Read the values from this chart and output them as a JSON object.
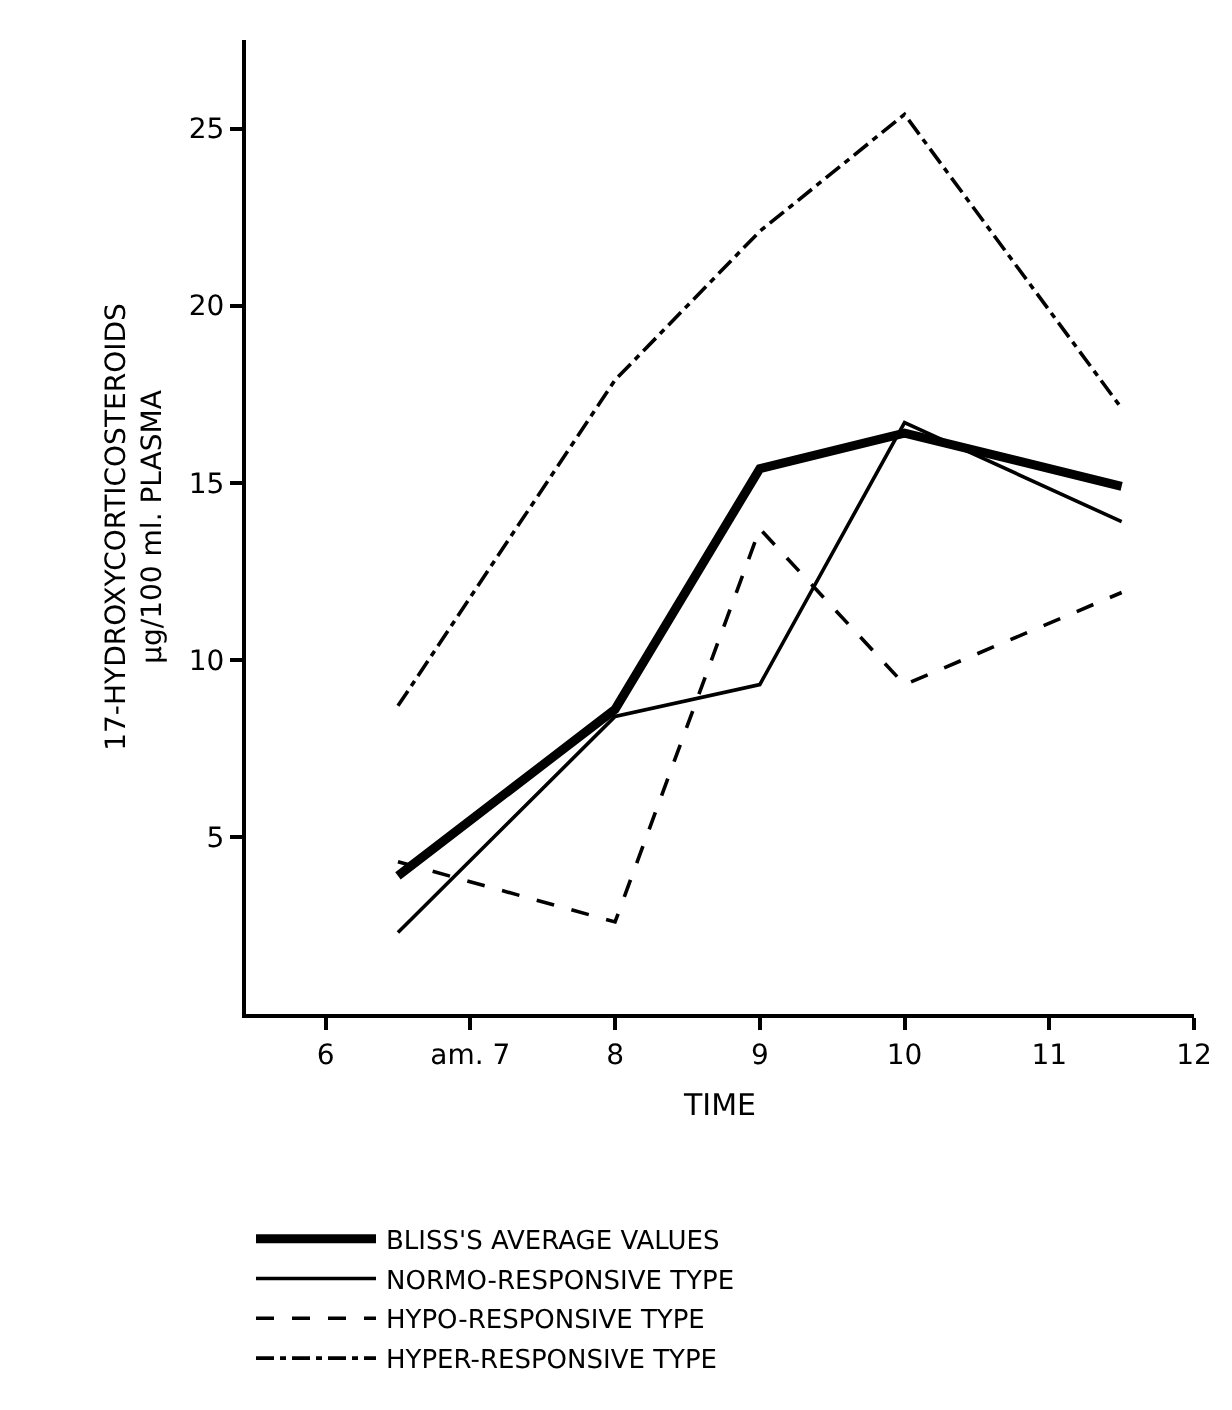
{
  "chart_data": {
    "type": "line",
    "xlabel": "TIME",
    "ylabel": "17-HYDROXYCORTICOSTEROIDS\nμg/100 ml. PLASMA",
    "x": [
      6.5,
      8,
      9,
      10,
      11.5
    ],
    "series": [
      {
        "name": "BLISS'S AVERAGE VALUES",
        "color": "#000000",
        "line_style": "solid",
        "values": [
          3.9,
          8.6,
          15.4,
          16.4,
          14.9
        ]
      },
      {
        "name": "NORMO-RESPONSIVE TYPE",
        "color": "#000000",
        "line_style": "solid",
        "values": [
          2.3,
          8.4,
          9.3,
          16.7,
          13.9
        ]
      },
      {
        "name": "HYPO-RESPONSIVE TYPE",
        "color": "#000000",
        "line_style": "dashed",
        "values": [
          4.3,
          2.6,
          13.7,
          9.3,
          11.9
        ]
      },
      {
        "name": "HYPER-RESPONSIVE TYPE",
        "color": "#000000",
        "line_style": "dashdot",
        "values": [
          8.7,
          17.9,
          22.1,
          25.4,
          17.1
        ]
      }
    ],
    "xlim": [
      5.45,
      12
    ],
    "xticks": [
      6,
      {
        "value": 7,
        "label": "am. 7"
      },
      8,
      9,
      10,
      11,
      12
    ],
    "ylim": [
      0,
      27.5
    ],
    "yticks": [
      5,
      10,
      15,
      20,
      25
    ],
    "legend": "bottom",
    "marker": "none"
  }
}
